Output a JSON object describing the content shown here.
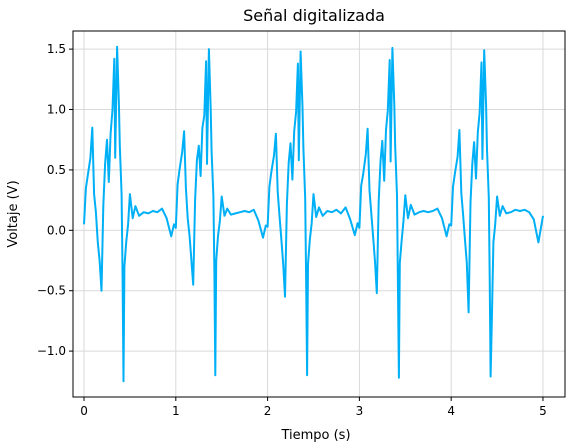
{
  "chart_data": {
    "type": "line",
    "title": "Señal digitalizada",
    "xlabel": "Tiempo (s)",
    "ylabel": "Voltaje (V)",
    "xlim": [
      -0.12,
      5.24
    ],
    "ylim": [
      -1.38,
      1.65
    ],
    "xticks": [
      0,
      1,
      2,
      3,
      4,
      5
    ],
    "yticks": [
      -1.0,
      -0.5,
      0.0,
      0.5,
      1.0,
      1.5
    ],
    "xtick_labels": [
      "0",
      "1",
      "2",
      "3",
      "4",
      "5"
    ],
    "ytick_labels": [
      "−1.0",
      "−0.5",
      "0.0",
      "0.5",
      "1.0",
      "1.5"
    ],
    "grid": true,
    "legend": false,
    "line_color": "#00b0f6",
    "series": [
      {
        "x": [
          0.0,
          0.02,
          0.04,
          0.07,
          0.09,
          0.11,
          0.13,
          0.15,
          0.17,
          0.19,
          0.21,
          0.23,
          0.25,
          0.27,
          0.29,
          0.31,
          0.33,
          0.34,
          0.36,
          0.38,
          0.39,
          0.41,
          0.42,
          0.43,
          0.44,
          0.46,
          0.48,
          0.5,
          0.53,
          0.56,
          0.6,
          0.65,
          0.7,
          0.75,
          0.8,
          0.85,
          0.9,
          0.95,
          0.98,
          1.0,
          1.02,
          1.04,
          1.07,
          1.09,
          1.11,
          1.13,
          1.15,
          1.17,
          1.19,
          1.21,
          1.23,
          1.25,
          1.27,
          1.29,
          1.31,
          1.33,
          1.34,
          1.36,
          1.38,
          1.39,
          1.41,
          1.42,
          1.43,
          1.44,
          1.46,
          1.48,
          1.5,
          1.53,
          1.56,
          1.6,
          1.65,
          1.7,
          1.75,
          1.8,
          1.85,
          1.9,
          1.95,
          1.98,
          2.0,
          2.02,
          2.04,
          2.07,
          2.09,
          2.11,
          2.13,
          2.15,
          2.17,
          2.19,
          2.21,
          2.23,
          2.25,
          2.27,
          2.29,
          2.31,
          2.33,
          2.34,
          2.36,
          2.38,
          2.39,
          2.41,
          2.42,
          2.43,
          2.44,
          2.46,
          2.48,
          2.5,
          2.53,
          2.56,
          2.6,
          2.65,
          2.7,
          2.75,
          2.8,
          2.85,
          2.9,
          2.95,
          2.98,
          3.0,
          3.02,
          3.04,
          3.07,
          3.09,
          3.11,
          3.13,
          3.15,
          3.17,
          3.19,
          3.21,
          3.23,
          3.25,
          3.27,
          3.29,
          3.31,
          3.33,
          3.34,
          3.36,
          3.38,
          3.39,
          3.41,
          3.42,
          3.43,
          3.44,
          3.46,
          3.48,
          3.5,
          3.53,
          3.56,
          3.6,
          3.65,
          3.7,
          3.75,
          3.8,
          3.85,
          3.9,
          3.95,
          3.98,
          4.0,
          4.02,
          4.04,
          4.07,
          4.09,
          4.11,
          4.13,
          4.15,
          4.17,
          4.19,
          4.21,
          4.23,
          4.25,
          4.27,
          4.29,
          4.31,
          4.33,
          4.34,
          4.36,
          4.38,
          4.39,
          4.41,
          4.42,
          4.43,
          4.44,
          4.46,
          4.48,
          4.5,
          4.53,
          4.56,
          4.6,
          4.65,
          4.7,
          4.75,
          4.8,
          4.85,
          4.9,
          4.95,
          5.0
        ],
        "y": [
          0.05,
          0.35,
          0.45,
          0.6,
          0.85,
          0.3,
          0.15,
          -0.1,
          -0.25,
          -0.5,
          0.2,
          0.55,
          0.75,
          0.4,
          0.8,
          1.0,
          1.42,
          0.6,
          1.52,
          1.05,
          0.7,
          0.3,
          -0.4,
          -1.25,
          -0.3,
          -0.1,
          0.05,
          0.3,
          0.1,
          0.2,
          0.12,
          0.15,
          0.14,
          0.16,
          0.15,
          0.18,
          0.1,
          -0.05,
          0.05,
          0.02,
          0.38,
          0.5,
          0.65,
          0.82,
          0.35,
          0.1,
          -0.05,
          -0.25,
          -0.45,
          0.25,
          0.58,
          0.7,
          0.45,
          0.85,
          0.95,
          1.4,
          0.55,
          1.5,
          1.0,
          0.65,
          0.28,
          -0.35,
          -1.2,
          -0.25,
          -0.05,
          0.08,
          0.28,
          0.12,
          0.18,
          0.13,
          0.14,
          0.15,
          0.16,
          0.15,
          0.17,
          0.08,
          -0.06,
          0.04,
          0.03,
          0.36,
          0.48,
          0.62,
          0.8,
          0.32,
          0.12,
          -0.08,
          -0.28,
          -0.55,
          0.22,
          0.56,
          0.72,
          0.42,
          0.82,
          0.98,
          1.38,
          0.58,
          1.48,
          1.02,
          0.68,
          0.26,
          -0.38,
          -1.2,
          -0.28,
          -0.08,
          0.06,
          0.3,
          0.11,
          0.19,
          0.12,
          0.16,
          0.15,
          0.17,
          0.14,
          0.19,
          0.09,
          -0.04,
          0.06,
          0.02,
          0.37,
          0.46,
          0.63,
          0.84,
          0.33,
          0.14,
          -0.06,
          -0.26,
          -0.52,
          0.24,
          0.57,
          0.74,
          0.41,
          0.83,
          0.99,
          1.41,
          0.57,
          1.51,
          1.04,
          0.69,
          0.29,
          -0.42,
          -1.22,
          -0.27,
          -0.09,
          0.07,
          0.29,
          0.1,
          0.21,
          0.13,
          0.15,
          0.16,
          0.15,
          0.16,
          0.18,
          0.1,
          -0.05,
          0.05,
          0.04,
          0.36,
          0.47,
          0.61,
          0.83,
          0.31,
          0.13,
          -0.07,
          -0.27,
          -0.68,
          0.23,
          0.55,
          0.73,
          0.43,
          0.81,
          0.97,
          1.39,
          0.59,
          1.49,
          1.03,
          0.67,
          0.27,
          -0.39,
          -1.21,
          -0.84,
          -0.1,
          0.05,
          0.28,
          0.12,
          0.2,
          0.14,
          0.15,
          0.17,
          0.16,
          0.17,
          0.15,
          0.09,
          -0.1,
          0.12
        ]
      }
    ]
  }
}
